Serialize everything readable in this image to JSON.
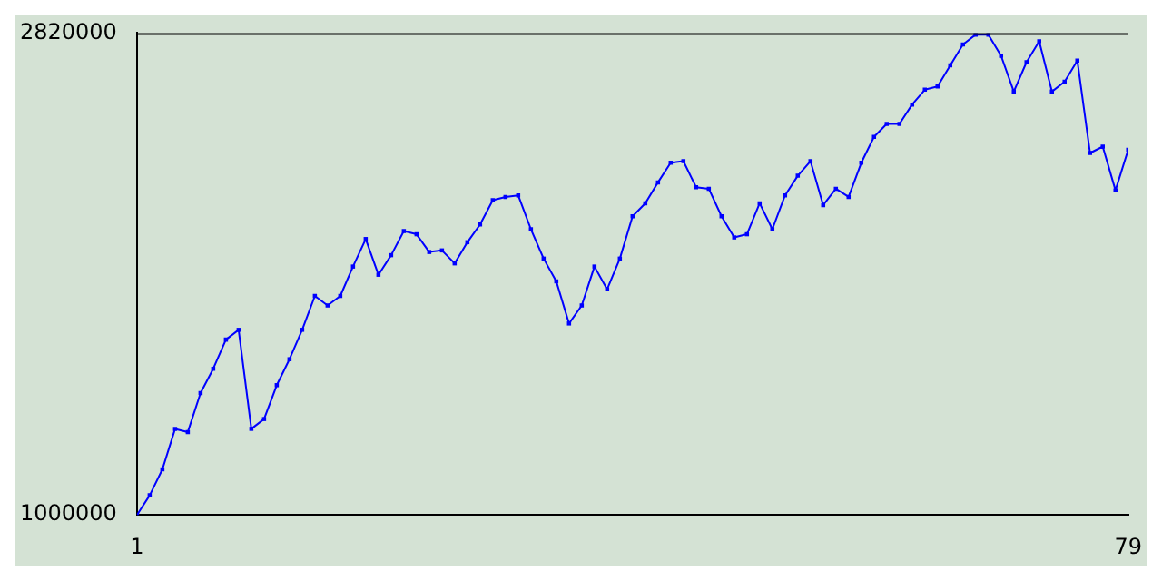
{
  "chart_data": {
    "type": "line",
    "x": [
      1,
      2,
      3,
      4,
      5,
      6,
      7,
      8,
      9,
      10,
      11,
      12,
      13,
      14,
      15,
      16,
      17,
      18,
      19,
      20,
      21,
      22,
      23,
      24,
      25,
      26,
      27,
      28,
      29,
      30,
      31,
      32,
      33,
      34,
      35,
      36,
      37,
      38,
      39,
      40,
      41,
      42,
      43,
      44,
      45,
      46,
      47,
      48,
      49,
      50,
      51,
      52,
      53,
      54,
      55,
      56,
      57,
      58,
      59,
      60,
      61,
      62,
      63,
      64,
      65,
      66,
      67,
      68,
      69,
      70,
      71,
      72,
      73,
      74,
      75,
      76,
      77,
      78,
      79
    ],
    "series": [
      {
        "color": "#0000ff",
        "values": [
          1000000,
          1074000,
          1172000,
          1325000,
          1313000,
          1460000,
          1552000,
          1662000,
          1699000,
          1325000,
          1362000,
          1490000,
          1588000,
          1699000,
          1827000,
          1791000,
          1827000,
          1938000,
          2042000,
          1907000,
          1981000,
          2072000,
          2060000,
          1993000,
          1999000,
          1950000,
          2030000,
          2097000,
          2189000,
          2201000,
          2207000,
          2079000,
          1968000,
          1882000,
          1723000,
          1791000,
          1938000,
          1852000,
          1968000,
          2128000,
          2177000,
          2256000,
          2330000,
          2336000,
          2238000,
          2232000,
          2128000,
          2048000,
          2060000,
          2177000,
          2079000,
          2207000,
          2281000,
          2336000,
          2170000,
          2232000,
          2201000,
          2330000,
          2428000,
          2477000,
          2477000,
          2550000,
          2606000,
          2618000,
          2698000,
          2777000,
          2814000,
          2814000,
          2734000,
          2599000,
          2710000,
          2789000,
          2599000,
          2636000,
          2716000,
          2367000,
          2391000,
          2226000,
          2379000
        ]
      }
    ],
    "xlim": [
      1,
      79
    ],
    "xticks": [
      1,
      79
    ],
    "ylim": [
      1000000,
      2820000
    ],
    "yticks": [
      1000000,
      2820000
    ],
    "grid": false,
    "legend": false,
    "marker": "square",
    "line_style": "solid"
  }
}
